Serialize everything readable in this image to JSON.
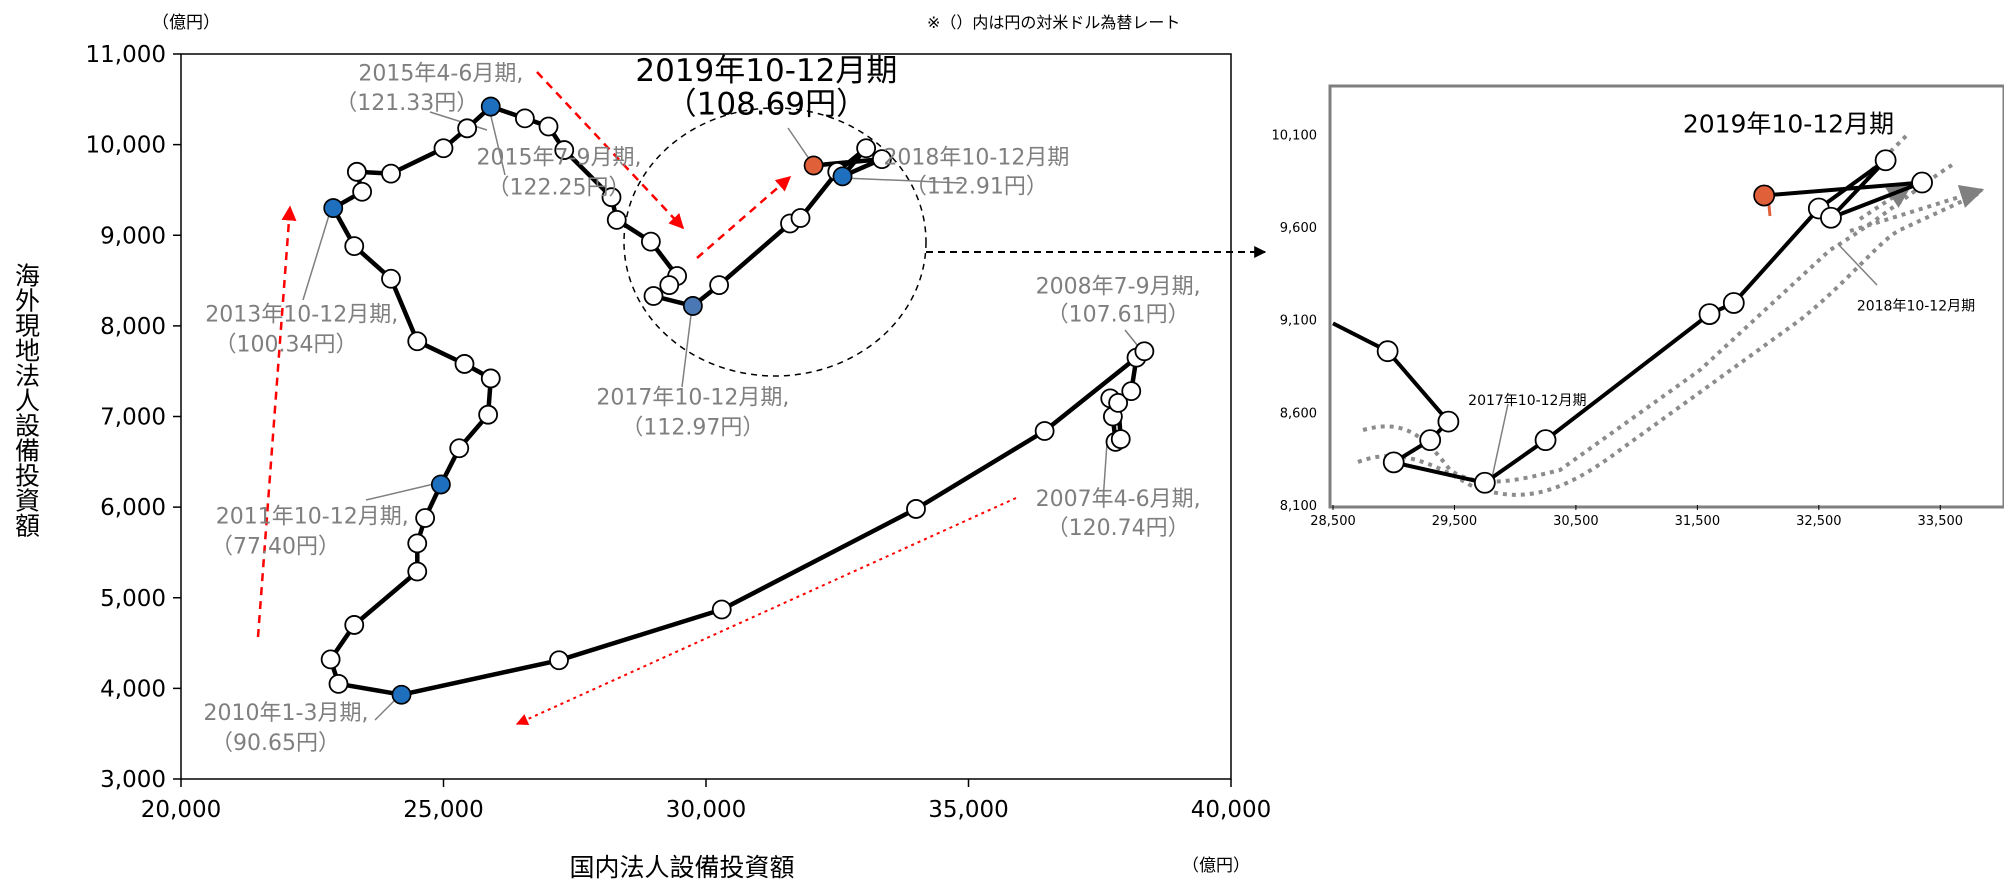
{
  "chart_data": [
    {
      "type": "line",
      "ylabel": "海外現地法人設備投資額",
      "xlabel": "国内法人設備投資額",
      "y_unit": "（億円）",
      "x_unit": "（億円）",
      "note": "※（）内は円の対米ドル為替レート",
      "xlim": [
        20000,
        40000
      ],
      "ylim": [
        3000,
        11000
      ],
      "x_ticks": [
        "20,000",
        "25,000",
        "30,000",
        "35,000",
        "40,000"
      ],
      "y_ticks": [
        "3,000",
        "4,000",
        "5,000",
        "6,000",
        "7,000",
        "8,000",
        "9,000",
        "10,000",
        "11,000"
      ],
      "grid": false,
      "points": [
        {
          "x": 37700,
          "y": 7200
        },
        {
          "x": 37750,
          "y": 7000
        },
        {
          "x": 37800,
          "y": 6720
        },
        {
          "x": 37900,
          "y": 6750
        },
        {
          "x": 37850,
          "y": 7150
        },
        {
          "x": 38100,
          "y": 7280
        },
        {
          "x": 38200,
          "y": 7650
        },
        {
          "x": 38350,
          "y": 7720
        },
        {
          "x": 36450,
          "y": 6840
        },
        {
          "x": 34000,
          "y": 5980
        },
        {
          "x": 30300,
          "y": 4870
        },
        {
          "x": 27200,
          "y": 4310
        },
        {
          "x": 24200,
          "y": 3930
        },
        {
          "x": 23000,
          "y": 4050
        },
        {
          "x": 22850,
          "y": 4320
        },
        {
          "x": 23300,
          "y": 4700
        },
        {
          "x": 24500,
          "y": 5290
        },
        {
          "x": 24500,
          "y": 5600
        },
        {
          "x": 24650,
          "y": 5880
        },
        {
          "x": 24950,
          "y": 6250
        },
        {
          "x": 25300,
          "y": 6650
        },
        {
          "x": 25850,
          "y": 7020
        },
        {
          "x": 25900,
          "y": 7420
        },
        {
          "x": 25400,
          "y": 7580
        },
        {
          "x": 24500,
          "y": 7830
        },
        {
          "x": 24000,
          "y": 8520
        },
        {
          "x": 23300,
          "y": 8880
        },
        {
          "x": 22900,
          "y": 9300
        },
        {
          "x": 23450,
          "y": 9480
        },
        {
          "x": 23350,
          "y": 9700
        },
        {
          "x": 24000,
          "y": 9680
        },
        {
          "x": 25000,
          "y": 9960
        },
        {
          "x": 25450,
          "y": 10180
        },
        {
          "x": 25900,
          "y": 10420
        },
        {
          "x": 26550,
          "y": 10290
        },
        {
          "x": 27000,
          "y": 10200
        },
        {
          "x": 27300,
          "y": 9940
        },
        {
          "x": 28200,
          "y": 9420
        },
        {
          "x": 28300,
          "y": 9170
        },
        {
          "x": 28950,
          "y": 8930
        },
        {
          "x": 29450,
          "y": 8550
        },
        {
          "x": 29300,
          "y": 8450
        },
        {
          "x": 29000,
          "y": 8330
        },
        {
          "x": 29750,
          "y": 8220
        },
        {
          "x": 30250,
          "y": 8450
        },
        {
          "x": 31600,
          "y": 9130
        },
        {
          "x": 31800,
          "y": 9190
        },
        {
          "x": 32500,
          "y": 9700
        },
        {
          "x": 33050,
          "y": 9960
        },
        {
          "x": 32600,
          "y": 9650
        },
        {
          "x": 33350,
          "y": 9840
        },
        {
          "x": 32050,
          "y": 9770
        }
      ],
      "highlighted_points": [
        {
          "x": 25900,
          "y": 10420,
          "color": "#1f6fbf"
        },
        {
          "x": 22900,
          "y": 9300,
          "color": "#1f6fbf"
        },
        {
          "x": 24950,
          "y": 6250,
          "color": "#1f6fbf"
        },
        {
          "x": 24200,
          "y": 3930,
          "color": "#1f6fbf"
        },
        {
          "x": 29750,
          "y": 8220,
          "color": "#4a78b4"
        },
        {
          "x": 32600,
          "y": 9650,
          "color": "#1f6fbf"
        },
        {
          "x": 32050,
          "y": 9770,
          "color": "#e0603a"
        }
      ],
      "annotations": [
        {
          "text": "2015年4-6月期,",
          "x": 24950,
          "y": 10710
        },
        {
          "text": "（121.33円）",
          "x": 24300,
          "y": 10380
        },
        {
          "text": "2015年7-9月期,",
          "x": 27200,
          "y": 9780
        },
        {
          "text": "（122.25円）",
          "x": 27200,
          "y": 9450
        },
        {
          "text": "2019年10-12月期",
          "x": 31150,
          "y": 10700
        },
        {
          "text": "（108.69円）",
          "x": 31150,
          "y": 10330
        },
        {
          "text": "2018年10-12月期",
          "x": 35150,
          "y": 9780
        },
        {
          "text": "（112.91円）",
          "x": 35150,
          "y": 9460
        },
        {
          "text": "2013年10-12月期,",
          "x": 22300,
          "y": 8050
        },
        {
          "text": "（100.34円）",
          "x": 22000,
          "y": 7720
        },
        {
          "text": "2008年7-9月期,",
          "x": 37850,
          "y": 8360
        },
        {
          "text": "（107.61円）",
          "x": 37850,
          "y": 8050
        },
        {
          "text": "2017年10-12月期,",
          "x": 29750,
          "y": 7130
        },
        {
          "text": "（112.97円）",
          "x": 29750,
          "y": 6800
        },
        {
          "text": "2011年10-12月期,",
          "x": 22500,
          "y": 5820
        },
        {
          "text": "（77.40円）",
          "x": 21800,
          "y": 5490
        },
        {
          "text": "2007年4-6月期,",
          "x": 37850,
          "y": 6010
        },
        {
          "text": "（120.74円）",
          "x": 37850,
          "y": 5690
        },
        {
          "text": "2010年1-3月期,",
          "x": 22000,
          "y": 3650
        },
        {
          "text": "（90.65円）",
          "x": 21800,
          "y": 3320
        }
      ]
    },
    {
      "type": "line",
      "xlim": [
        28500,
        34000
      ],
      "ylim": [
        8100,
        10350
      ],
      "x_ticks": [
        "28,500",
        "29,500",
        "30,500",
        "31,500",
        "32,500",
        "33,500"
      ],
      "y_ticks": [
        "8,100",
        "8,600",
        "9,100",
        "9,600",
        "10,100"
      ],
      "points": [
        {
          "x": 28500,
          "y": 9080
        },
        {
          "x": 28950,
          "y": 8930
        },
        {
          "x": 29450,
          "y": 8550
        },
        {
          "x": 29300,
          "y": 8450
        },
        {
          "x": 29000,
          "y": 8330
        },
        {
          "x": 29750,
          "y": 8220
        },
        {
          "x": 30250,
          "y": 8450
        },
        {
          "x": 31600,
          "y": 9130
        },
        {
          "x": 31800,
          "y": 9190
        },
        {
          "x": 32500,
          "y": 9700
        },
        {
          "x": 33050,
          "y": 9960
        },
        {
          "x": 32600,
          "y": 9650
        },
        {
          "x": 33350,
          "y": 9840
        },
        {
          "x": 32050,
          "y": 9770
        }
      ],
      "highlighted_point": {
        "x": 32050,
        "y": 9770,
        "color": "#e0603a"
      },
      "annotations": [
        {
          "text": "2019年10-12月期",
          "x": 32250,
          "y": 10110
        },
        {
          "text": "2017年10-12月期",
          "x": 30100,
          "y": 8640
        },
        {
          "text": "2018年10-12月期",
          "x": 33300,
          "y": 9150
        }
      ]
    }
  ]
}
